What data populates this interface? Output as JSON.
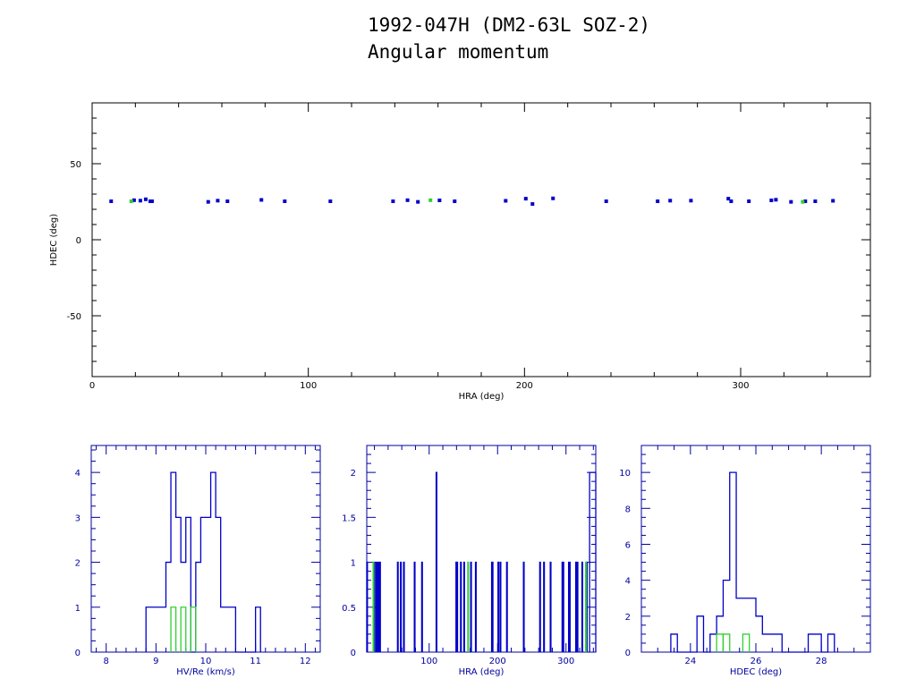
{
  "header": {
    "title": "1992-047H (DM2-63L SOZ-2)",
    "subtitle": "Angular momentum"
  },
  "colors": {
    "axis_top": "#000000",
    "axis_bottom": "#0000a0",
    "main": "#0000c8",
    "highlight": "#30d030"
  },
  "chart_data": [
    {
      "type": "scatter",
      "title": "",
      "xlabel": "HRA (deg)",
      "ylabel": "HDEC (deg)",
      "xlim": [
        0,
        360
      ],
      "ylim": [
        -90,
        90
      ],
      "xticks": [
        0,
        100,
        200,
        300
      ],
      "xtick_labels": [
        "0",
        "100",
        "200",
        "300"
      ],
      "yticks": [
        -50,
        0,
        50
      ],
      "ytick_labels": [
        "-50",
        "0",
        "50"
      ],
      "series": [
        {
          "name": "main",
          "color": "#0000c8",
          "points": [
            [
              8.8,
              25.3
            ],
            [
              19.4,
              26.0
            ],
            [
              22.3,
              25.7
            ],
            [
              24.8,
              26.6
            ],
            [
              26.9,
              25.3
            ],
            [
              27.7,
              25.3
            ],
            [
              53.7,
              24.9
            ],
            [
              58.1,
              25.7
            ],
            [
              62.6,
              25.3
            ],
            [
              78.3,
              26.2
            ],
            [
              89.1,
              25.3
            ],
            [
              110.2,
              25.3
            ],
            [
              139.2,
              25.3
            ],
            [
              145.9,
              26.0
            ],
            [
              150.7,
              24.9
            ],
            [
              160.7,
              25.9
            ],
            [
              167.7,
              25.3
            ],
            [
              191.3,
              25.6
            ],
            [
              200.6,
              27.0
            ],
            [
              203.7,
              23.5
            ],
            [
              213.2,
              27.2
            ],
            [
              237.8,
              25.3
            ],
            [
              261.6,
              25.3
            ],
            [
              267.4,
              25.7
            ],
            [
              277.0,
              25.7
            ],
            [
              294.3,
              27.0
            ],
            [
              295.6,
              25.3
            ],
            [
              303.8,
              25.3
            ],
            [
              314.2,
              25.9
            ],
            [
              316.3,
              26.3
            ],
            [
              323.3,
              24.9
            ],
            [
              329.9,
              25.3
            ],
            [
              334.5,
              25.3
            ],
            [
              342.7,
              25.6
            ]
          ]
        },
        {
          "name": "highlight",
          "color": "#30d030",
          "points": [
            [
              18.1,
              25.3
            ],
            [
              156.5,
              26.0
            ],
            [
              328.7,
              24.9
            ]
          ]
        }
      ]
    },
    {
      "type": "histogram",
      "xlabel": "HV/Re (km/s)",
      "ylabel": "",
      "xlim": [
        7.7,
        12.3
      ],
      "ylim": [
        0,
        4.6
      ],
      "xticks": [
        8,
        9,
        10,
        11,
        12
      ],
      "xtick_labels": [
        "8",
        "9",
        "10",
        "11",
        "12"
      ],
      "yticks": [
        0,
        1,
        2,
        3,
        4
      ],
      "ytick_labels": [
        "0",
        "1",
        "2",
        "3",
        "4"
      ],
      "bin_start": 8.8,
      "bin_width": 0.1,
      "counts": [
        1,
        1,
        1,
        1,
        2,
        4,
        3,
        2,
        3,
        0,
        2,
        3,
        3,
        4,
        3,
        1,
        1,
        1,
        0,
        0,
        0,
        0,
        1
      ],
      "highlight_bins": [
        [
          9.3,
          1
        ],
        [
          9.5,
          1
        ],
        [
          9.7,
          1
        ]
      ]
    },
    {
      "type": "histogram",
      "xlabel": "HRA (deg)",
      "ylabel": "",
      "xlim": [
        8.8,
        343.5
      ],
      "ylim": [
        0,
        2.3
      ],
      "xticks": [
        100,
        200,
        300
      ],
      "xtick_labels": [
        "100",
        "200",
        "300"
      ],
      "yticks": [
        0,
        0.5,
        1,
        1.5,
        2
      ],
      "ytick_labels": [
        "0",
        "0.5",
        "1",
        "1.5",
        "2"
      ],
      "bins": [
        [
          8.8,
          9.8,
          1
        ],
        [
          19.4,
          20.4,
          1
        ],
        [
          22.3,
          23.3,
          1
        ],
        [
          24.8,
          25.8,
          1
        ],
        [
          26.9,
          27.9,
          1
        ],
        [
          27.7,
          28.7,
          1
        ],
        [
          53.7,
          54.7,
          1
        ],
        [
          58.1,
          59.1,
          1
        ],
        [
          62.6,
          63.6,
          1
        ],
        [
          78.3,
          79.3,
          1
        ],
        [
          89.1,
          90.1,
          1
        ],
        [
          110.2,
          111.2,
          2
        ],
        [
          139.2,
          140.2,
          1
        ],
        [
          140.5,
          141.5,
          1
        ],
        [
          145.9,
          146.9,
          1
        ],
        [
          150.7,
          151.7,
          1
        ],
        [
          160.7,
          161.7,
          1
        ],
        [
          167.7,
          168.7,
          1
        ],
        [
          191.3,
          192.3,
          1
        ],
        [
          192.2,
          193.2,
          1
        ],
        [
          200.6,
          201.6,
          1
        ],
        [
          203.7,
          204.7,
          1
        ],
        [
          213.2,
          214.2,
          1
        ],
        [
          237.8,
          238.8,
          1
        ],
        [
          261.6,
          262.6,
          1
        ],
        [
          267.4,
          268.4,
          1
        ],
        [
          277.0,
          278.0,
          1
        ],
        [
          294.3,
          295.3,
          1
        ],
        [
          295.6,
          296.6,
          1
        ],
        [
          303.8,
          304.8,
          1
        ],
        [
          305.0,
          306.0,
          1
        ],
        [
          314.2,
          315.2,
          1
        ],
        [
          316.3,
          317.3,
          1
        ],
        [
          323.3,
          324.3,
          1
        ],
        [
          329.9,
          330.9,
          1
        ],
        [
          334.5,
          343.5,
          2
        ]
      ],
      "highlight_bins": [
        [
          18.1,
          19.1,
          1
        ],
        [
          156.5,
          157.5,
          1
        ],
        [
          328.7,
          329.7,
          1
        ]
      ]
    },
    {
      "type": "histogram",
      "xlabel": "HDEC (deg)",
      "ylabel": "",
      "xlim": [
        22.5,
        29.5
      ],
      "ylim": [
        0,
        11.5
      ],
      "xticks": [
        24,
        26,
        28
      ],
      "xtick_labels": [
        "24",
        "26",
        "28"
      ],
      "yticks": [
        0,
        2,
        4,
        6,
        8,
        10
      ],
      "ytick_labels": [
        "0",
        "2",
        "4",
        "6",
        "8",
        "10"
      ],
      "bin_start": 23.4,
      "bin_width": 0.2,
      "counts": [
        1,
        0,
        0,
        0,
        2,
        0,
        1,
        2,
        4,
        10,
        3,
        3,
        3,
        2,
        1,
        1,
        1,
        0,
        0,
        0,
        0,
        1,
        1,
        0,
        1
      ],
      "highlight_bins": [
        [
          24.8,
          1
        ],
        [
          25.0,
          1
        ],
        [
          25.6,
          1
        ]
      ]
    }
  ]
}
